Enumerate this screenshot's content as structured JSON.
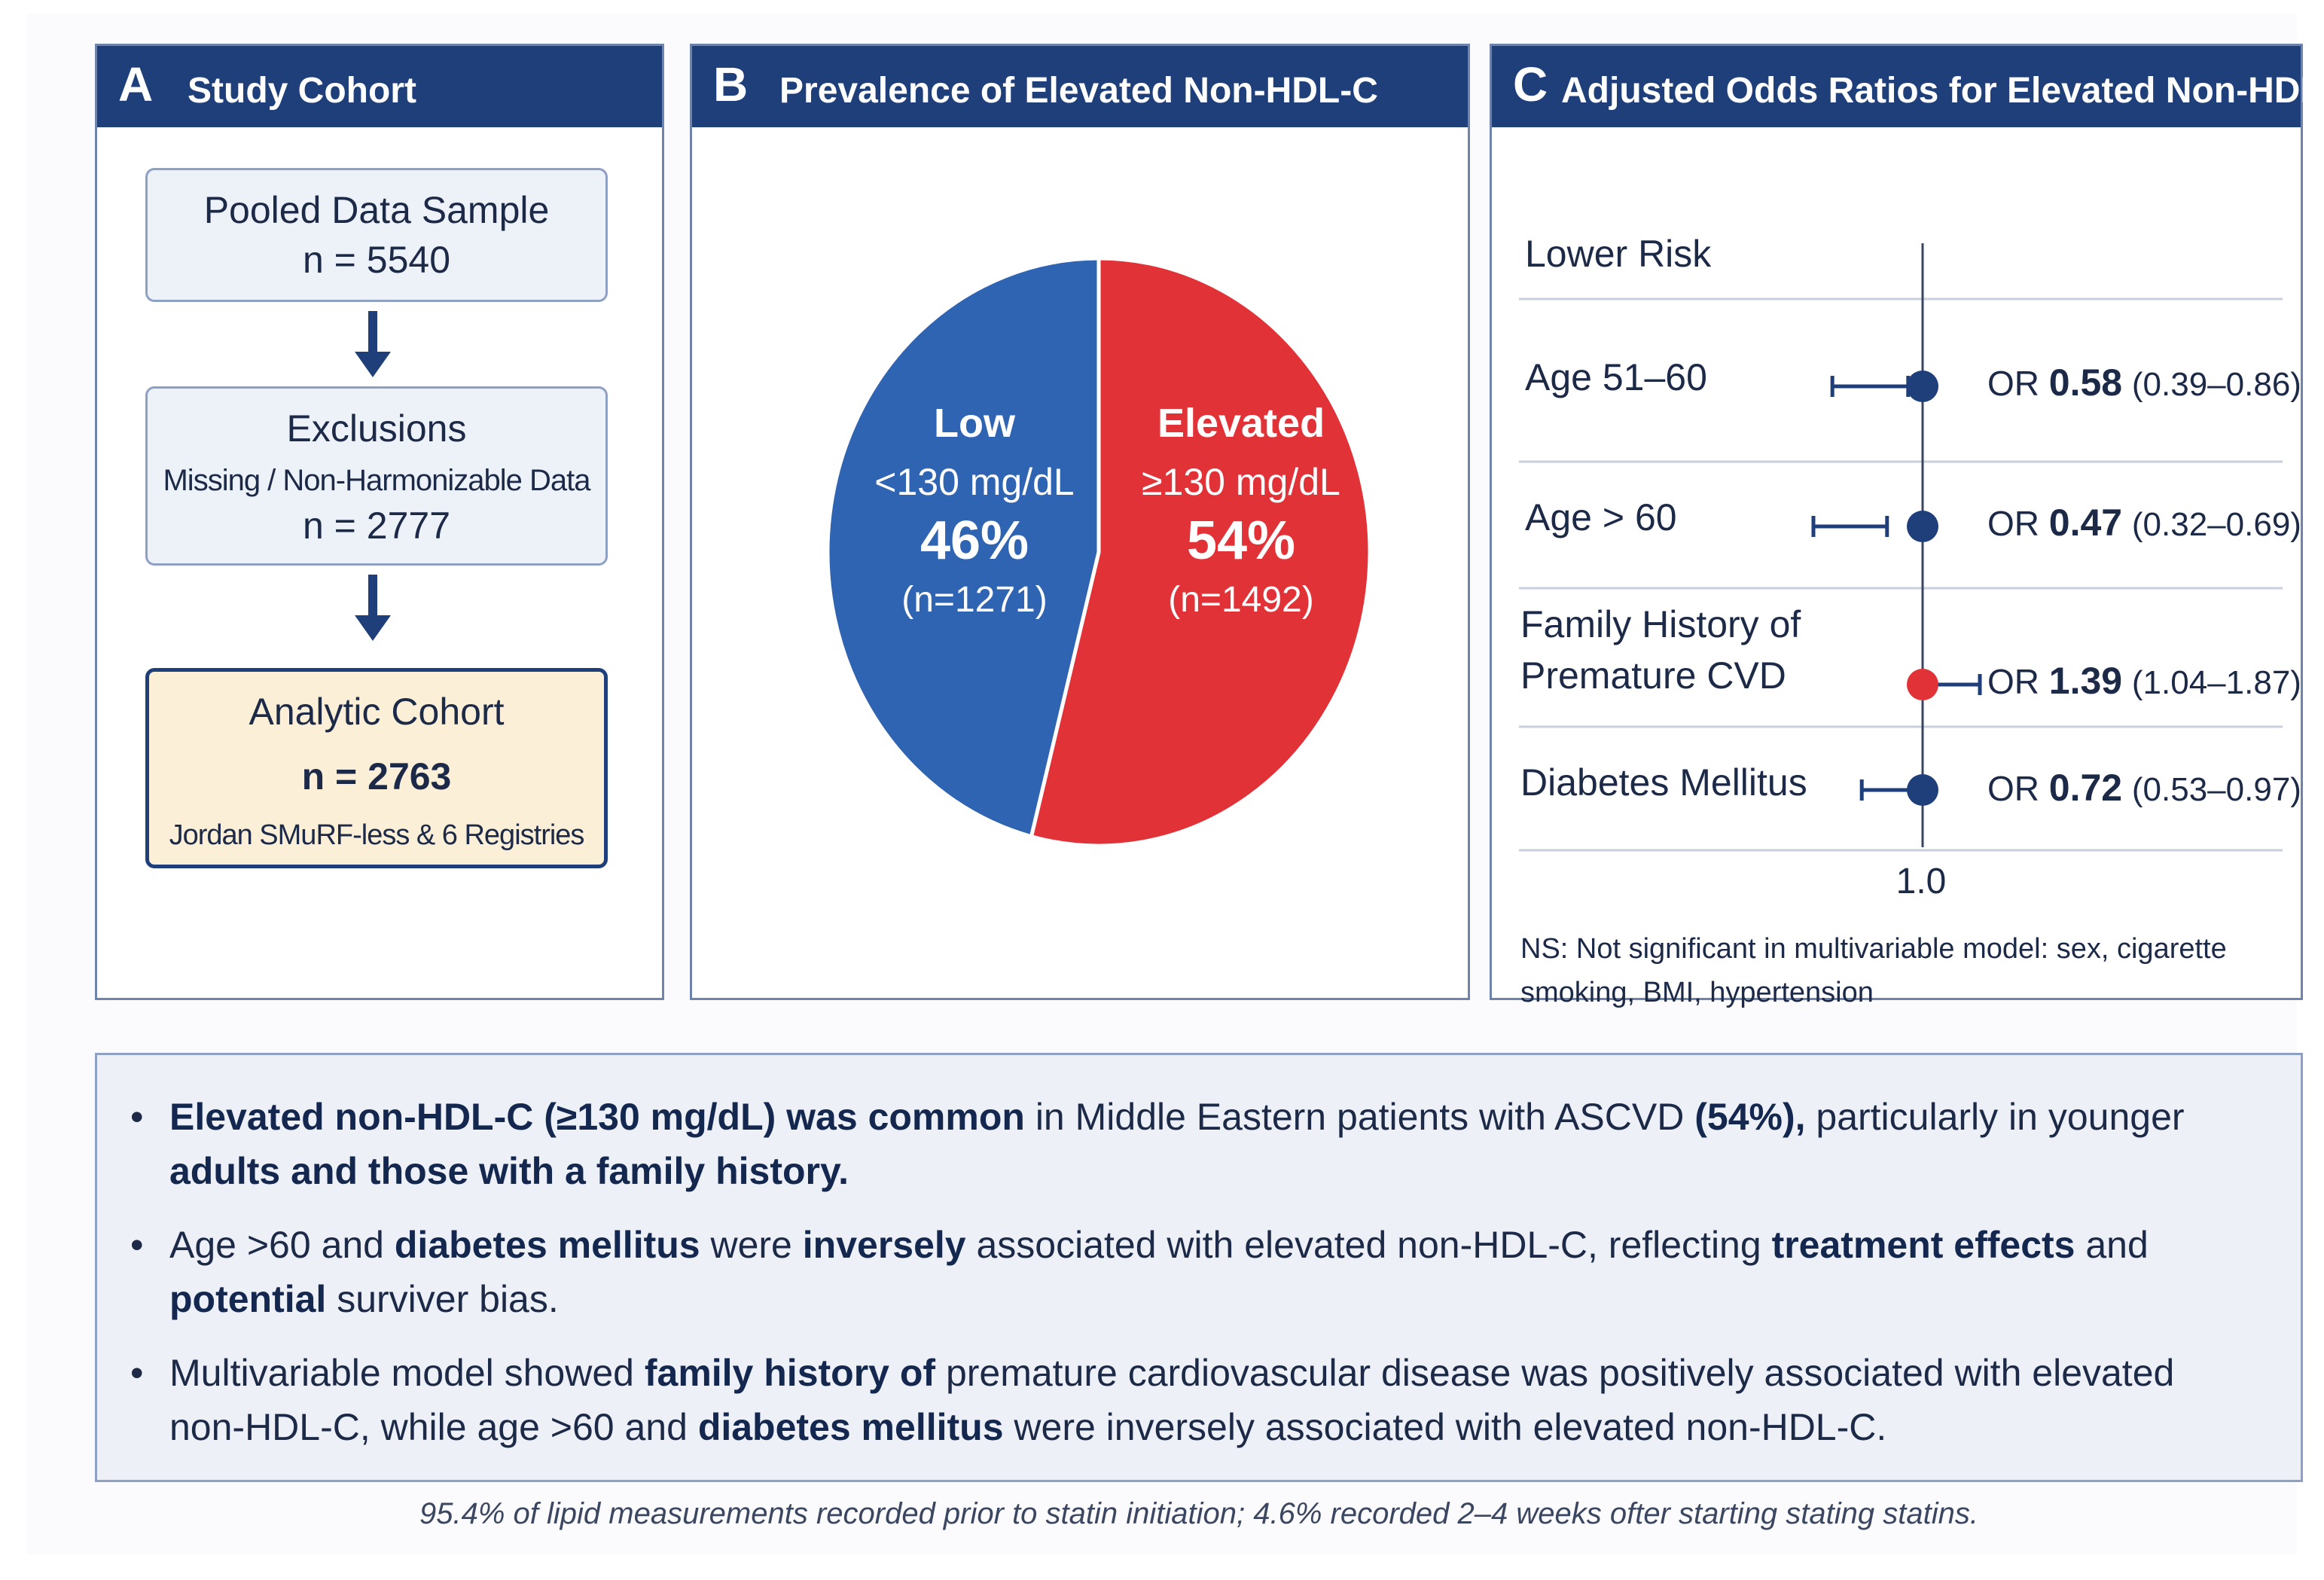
{
  "panel_a": {
    "letter": "A",
    "title": "Study Cohort",
    "pooled": {
      "title": "Pooled Data Sample",
      "n": "n = 5540"
    },
    "exclusions": {
      "title": "Exclusions",
      "subtitle": "Missing / Non-Harmonizable Data",
      "n": "n = 2777"
    },
    "analytic": {
      "title": "Analytic Cohort",
      "n": "n = 2763",
      "subtitle": "Jordan SMuRF-less & 6 Registries"
    }
  },
  "panel_b": {
    "letter": "B",
    "title": "Prevalence of Elevated Non-HDL-C",
    "low": {
      "label": "Low",
      "range": "<130 mg/dL",
      "pct": "46%",
      "n": "(n=1271)",
      "value": 46,
      "color": "#2f64b3"
    },
    "elevated": {
      "label": "Elevated",
      "range": "≥130 mg/dL",
      "pct": "54%",
      "n": "(n=1492)",
      "value": 54,
      "color": "#e13238"
    }
  },
  "panel_c": {
    "letter": "C",
    "title": "Adjusted Odds Ratios for Elevated Non-HDL-C",
    "header": "Lower Risk",
    "rows": [
      {
        "label1": "Age 51–60",
        "label2": "",
        "or_prefix": "OR",
        "or": "0.58",
        "ci": "(0.39–0.86)",
        "value": 0.58,
        "lo": 0.39,
        "hi": 0.86,
        "color": "#1f3f7b"
      },
      {
        "label1": "Age > 60",
        "label2": "",
        "or_prefix": "OR",
        "or": "0.47",
        "ci": "(0.32–0.69)",
        "value": 0.47,
        "lo": 0.32,
        "hi": 0.69,
        "color": "#1f3f7b"
      },
      {
        "label1": "Family History of",
        "label2": "Premature CVD",
        "or_prefix": "OR",
        "or": "1.39",
        "ci": "(1.04–1.87)",
        "value": 1.39,
        "lo": 1.04,
        "hi": 1.87,
        "color": "#e13238"
      },
      {
        "label1": "Diabetes Mellitus",
        "label2": "",
        "or_prefix": "OR",
        "or": "0.72",
        "ci": "(0.53–0.97)",
        "value": 0.72,
        "lo": 0.53,
        "hi": 0.97,
        "color": "#1f3f7b"
      }
    ],
    "ref_label": "1.0",
    "note": "NS: Not significant in multivariable model: sex, cigarette smoking, BMI, hypertension"
  },
  "summary": {
    "bullet": "•",
    "b1": {
      "s1": "Elevated non-HDL-C (≥130 mg/dL) was common",
      "s2": " in Middle Eastern patients with ASCVD ",
      "s3": "(54%),",
      "s4": " particularly in younger ",
      "s5": "adults and those with a family history."
    },
    "b2": {
      "s1": "Age >60 and ",
      "s2": "diabetes mellitus",
      "s3": " were ",
      "s4": "inversely",
      "s5": " associated with elevated non-HDL-C, reflecting ",
      "s6": "treatment effects",
      "s7": " and ",
      "s8": "potential",
      "s9": " surviver bias."
    },
    "b3": {
      "s1": "Multivariable model showed ",
      "s2": "family history of",
      "s3": " premature cardiovascular disease was positively associated with elevated non-HDL-C, while age >60 and ",
      "s4": "diabetes mellitus",
      "s5": " were inversely associated with elevated non-HDL-C."
    }
  },
  "footnote": "95.4% of lipid measurements recorded prior to statin initiation; 4.6% recorded 2–4 weeks ofter starting stating statins.",
  "chart_data": [
    {
      "type": "pie",
      "title": "Prevalence of Elevated Non-HDL-C",
      "categories": [
        "Low <130 mg/dL",
        "Elevated ≥130 mg/dL"
      ],
      "values": [
        46,
        54
      ],
      "counts": [
        1271,
        1492
      ]
    },
    {
      "type": "scatter",
      "title": "Adjusted Odds Ratios for Elevated Non-HDL-C",
      "categories": [
        "Age 51–60",
        "Age > 60",
        "Family History of Premature CVD",
        "Diabetes Mellitus"
      ],
      "values": [
        0.58,
        0.47,
        1.39,
        0.72
      ],
      "ci_low": [
        0.39,
        0.32,
        1.04,
        0.53
      ],
      "ci_high": [
        0.86,
        0.69,
        1.87,
        0.97
      ],
      "reference_line": 1.0
    }
  ]
}
